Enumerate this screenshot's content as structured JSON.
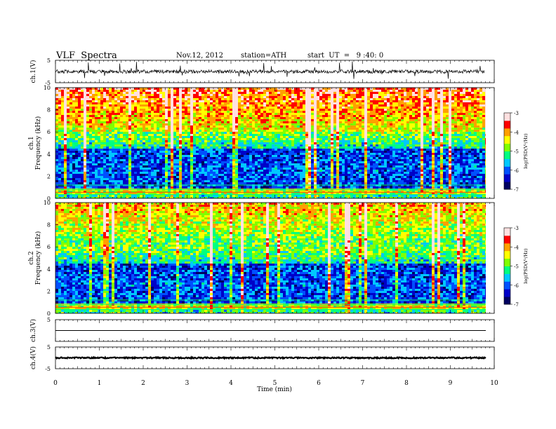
{
  "header": {
    "title": "VLF  Spectra",
    "date": "Nov.12, 2012",
    "station": "station=ATH",
    "start": "start  UT  =   9 :40: 0"
  },
  "colors": {
    "spectrum": [
      "#000060",
      "#0000c8",
      "#0050ff",
      "#00c8ff",
      "#00ff80",
      "#80ff00",
      "#ffff00",
      "#ffa000",
      "#ff0000",
      "#ffe0e0",
      "#ffffff"
    ]
  },
  "chart_data": [
    {
      "type": "line",
      "panel": "ch1",
      "ylabel": "ch.1(V)",
      "ylim": [
        -5,
        5
      ],
      "yticks": [
        "5",
        "-5"
      ],
      "description_values": {
        "baseline": 0,
        "typical_spikes": [
          -5,
          5
        ]
      }
    },
    {
      "type": "heatmap",
      "panel": "spec1",
      "ylabel_top": "ch.1",
      "ylabel": "Frequency (kHz)",
      "ylim": [
        0,
        10
      ],
      "yticks": [
        "0",
        "2",
        "4",
        "6",
        "8",
        "10"
      ],
      "colorbar": {
        "label": "log(PSD(V²/Hz)",
        "range": [
          -7,
          -3
        ],
        "ticks": [
          "-7",
          "-6",
          "-5",
          "-4",
          "-3"
        ]
      }
    },
    {
      "type": "heatmap",
      "panel": "spec2",
      "ylabel_top": "ch.2",
      "ylabel": "Frequency (kHz)",
      "ylim": [
        0,
        10
      ],
      "yticks": [
        "0",
        "2",
        "4",
        "6",
        "8",
        "10"
      ],
      "colorbar": {
        "label": "log(PSD(V²/Hz)",
        "range": [
          -7,
          -3
        ],
        "ticks": [
          "-7",
          "-6",
          "-5",
          "-4",
          "-3"
        ]
      }
    },
    {
      "type": "line",
      "panel": "ch3",
      "ylabel": "ch.3(V)",
      "ylim": [
        -5,
        5
      ],
      "yticks": [
        "5"
      ],
      "values_constant": 0
    },
    {
      "type": "line",
      "panel": "ch4",
      "ylabel": "ch.4(V)",
      "ylim": [
        -5,
        5
      ],
      "yticks": [
        "5",
        "-5"
      ],
      "values_constant": 0
    }
  ],
  "xaxis": {
    "label": "Time  (min)",
    "xlim": [
      0,
      10
    ],
    "ticks": [
      "0",
      "1",
      "2",
      "3",
      "4",
      "5",
      "6",
      "7",
      "8",
      "9",
      "10"
    ]
  }
}
